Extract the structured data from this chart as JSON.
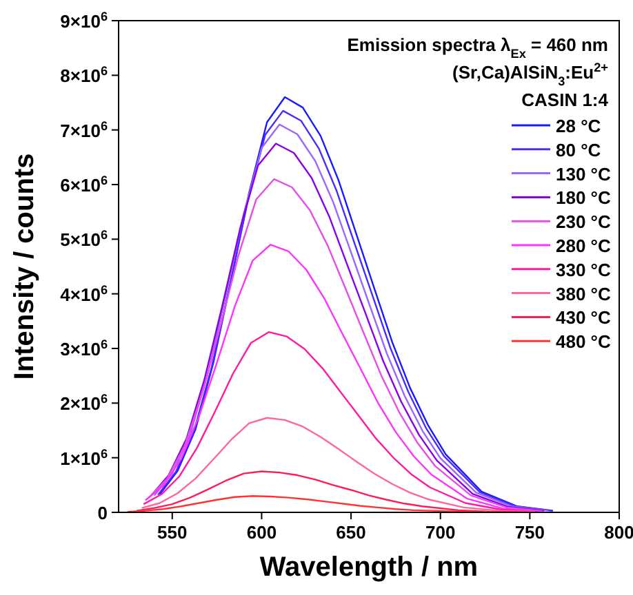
{
  "chart_data": {
    "type": "line",
    "xlabel": "Wavelength / nm",
    "ylabel": "Intensity / counts",
    "annotations": [
      "Emission spectra λ$_{Ex}$ = 460 nm",
      "(Sr,Ca)AlSiN$_{3}$:Eu$^{2+}$",
      "CASIN 1:4"
    ],
    "xlim": [
      520,
      800
    ],
    "xticks": [
      550,
      600,
      650,
      700,
      750,
      800
    ],
    "ylim": [
      0,
      9000000
    ],
    "yticks": [
      {
        "value": 0,
        "label": "0"
      },
      {
        "value": 1000000,
        "label": "1×10$^{6}$"
      },
      {
        "value": 2000000,
        "label": "2×10$^{6}$"
      },
      {
        "value": 3000000,
        "label": "3×10$^{6}$"
      },
      {
        "value": 4000000,
        "label": "4×10$^{6}$"
      },
      {
        "value": 5000000,
        "label": "5×10$^{6}$"
      },
      {
        "value": 6000000,
        "label": "6×10$^{6}$"
      },
      {
        "value": 7000000,
        "label": "7×10$^{6}$"
      },
      {
        "value": 8000000,
        "label": "8×10$^{6}$"
      },
      {
        "value": 9000000,
        "label": "9×10$^{6}$"
      }
    ],
    "legend": "top right",
    "grid": false,
    "marker": "none",
    "line_style": "solid",
    "series": [
      {
        "name": "28 °C",
        "color": "#1a1aff",
        "x": [
          543,
          553,
          563,
          573,
          583,
          593,
          603,
          613,
          623,
          633,
          643,
          653,
          663,
          673,
          683,
          693,
          703,
          723,
          743,
          763
        ],
        "values": [
          330000,
          760000,
          1520000,
          2740000,
          4260000,
          5850000,
          7140000,
          7600000,
          7410000,
          6890000,
          6080000,
          5090000,
          4100000,
          3120000,
          2280000,
          1600000,
          1060000,
          380000,
          110000,
          30000
        ]
      },
      {
        "name": "80 °C",
        "color": "#4a2bff",
        "x": [
          542,
          552,
          562,
          572,
          582,
          592,
          602,
          612,
          622,
          632,
          642,
          652,
          662,
          672,
          682,
          692,
          702,
          722,
          742,
          762
        ],
        "values": [
          320000,
          740000,
          1470000,
          2650000,
          4120000,
          5660000,
          6910000,
          7350000,
          7170000,
          6660000,
          5880000,
          4920000,
          3970000,
          3010000,
          2210000,
          1540000,
          1030000,
          370000,
          110000,
          30000
        ]
      },
      {
        "name": "130 °C",
        "color": "#9966ff",
        "x": [
          540,
          550,
          560,
          570,
          580,
          590,
          600,
          610,
          620,
          630,
          640,
          650,
          660,
          670,
          680,
          690,
          700,
          720,
          740,
          760
        ],
        "values": [
          310000,
          710000,
          1420000,
          2560000,
          3980000,
          5470000,
          6670000,
          7100000,
          6920000,
          6430000,
          5680000,
          4760000,
          3830000,
          2910000,
          2130000,
          1490000,
          990000,
          360000,
          110000,
          30000
        ]
      },
      {
        "name": "180 °C",
        "color": "#8a00e6",
        "x": [
          538,
          548,
          558,
          568,
          578,
          588,
          598,
          608,
          618,
          628,
          638,
          648,
          658,
          668,
          678,
          688,
          698,
          718,
          738,
          758
        ],
        "values": [
          300000,
          680000,
          1350000,
          2430000,
          3780000,
          5200000,
          6350000,
          6750000,
          6580000,
          6120000,
          5400000,
          4520000,
          3650000,
          2770000,
          2030000,
          1420000,
          950000,
          340000,
          100000,
          30000
        ]
      },
      {
        "name": "230 °C",
        "color": "#e64de6",
        "x": [
          537,
          547,
          557,
          567,
          577,
          587,
          597,
          607,
          617,
          627,
          637,
          647,
          657,
          667,
          677,
          687,
          697,
          717,
          737,
          757
        ],
        "values": [
          270000,
          610000,
          1220000,
          2200000,
          3420000,
          4700000,
          5730000,
          6100000,
          5950000,
          5530000,
          4880000,
          4090000,
          3290000,
          2500000,
          1830000,
          1280000,
          850000,
          310000,
          90000,
          20000
        ]
      },
      {
        "name": "280 °C",
        "color": "#ff33ff",
        "x": [
          535,
          545,
          555,
          565,
          575,
          585,
          595,
          605,
          615,
          625,
          635,
          645,
          655,
          665,
          675,
          685,
          695,
          715,
          735,
          755
        ],
        "values": [
          220000,
          490000,
          980000,
          1760000,
          2740000,
          3770000,
          4610000,
          4900000,
          4780000,
          4440000,
          3920000,
          3280000,
          2650000,
          2010000,
          1470000,
          1030000,
          690000,
          250000,
          70000,
          20000
        ]
      },
      {
        "name": "330 °C",
        "color": "#ff1aa0",
        "x": [
          534,
          544,
          554,
          564,
          574,
          584,
          594,
          604,
          614,
          624,
          634,
          644,
          654,
          664,
          674,
          684,
          694,
          714,
          734,
          754
        ],
        "values": [
          150000,
          330000,
          660000,
          1190000,
          1850000,
          2540000,
          3100000,
          3300000,
          3220000,
          2990000,
          2640000,
          2210000,
          1780000,
          1350000,
          990000,
          690000,
          460000,
          170000,
          50000,
          10000
        ]
      },
      {
        "name": "380 °C",
        "color": "#ff6699",
        "x": [
          533,
          543,
          553,
          563,
          573,
          583,
          593,
          603,
          613,
          623,
          633,
          643,
          653,
          663,
          673,
          683,
          693,
          713,
          733,
          753
        ],
        "values": [
          80000,
          170000,
          350000,
          620000,
          970000,
          1330000,
          1630000,
          1730000,
          1690000,
          1570000,
          1380000,
          1160000,
          930000,
          710000,
          520000,
          360000,
          240000,
          90000,
          30000,
          10000
        ]
      },
      {
        "name": "430 °C",
        "color": "#ff1a5a",
        "x": [
          530,
          540,
          550,
          560,
          570,
          580,
          590,
          600,
          610,
          620,
          630,
          640,
          650,
          660,
          670,
          680,
          690,
          710,
          730,
          750
        ],
        "values": [
          30000,
          80000,
          150000,
          270000,
          420000,
          580000,
          710000,
          750000,
          730000,
          680000,
          600000,
          500000,
          410000,
          310000,
          230000,
          160000,
          110000,
          40000,
          10000,
          0
        ]
      },
      {
        "name": "480 °C",
        "color": "#ff3333",
        "x": [
          525,
          535,
          545,
          555,
          565,
          575,
          585,
          595,
          605,
          615,
          625,
          635,
          645,
          655,
          665,
          675,
          685,
          705,
          725,
          745
        ],
        "values": [
          10000,
          30000,
          60000,
          110000,
          170000,
          230000,
          280000,
          300000,
          290000,
          270000,
          240000,
          200000,
          160000,
          120000,
          90000,
          60000,
          40000,
          20000,
          10000,
          0
        ]
      }
    ]
  }
}
